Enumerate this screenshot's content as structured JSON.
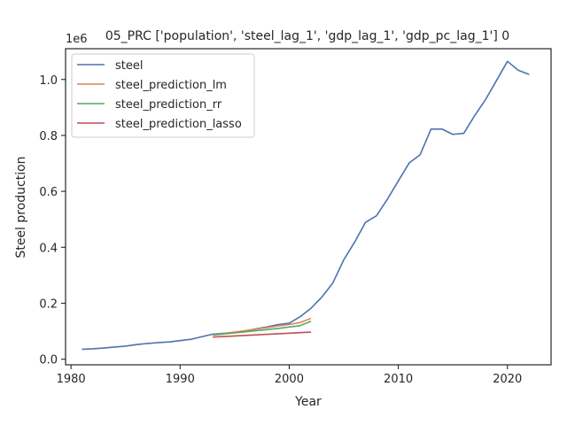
{
  "chart_data": {
    "type": "line",
    "title": "05_PRC ['population', 'steel_lag_1', 'gdp_lag_1', 'gdp_pc_lag_1'] 0",
    "xlabel": "Year",
    "ylabel": "Steel production",
    "y_offset_label": "1e6",
    "xlim": [
      1979.5,
      2024.0
    ],
    "ylim": [
      -0.02,
      1.11
    ],
    "xticks": [
      1980,
      1990,
      2000,
      2010,
      2020
    ],
    "yticks": [
      0.0,
      0.2,
      0.4,
      0.6,
      0.8,
      1.0
    ],
    "ytick_labels": [
      "0.0",
      "0.2",
      "0.4",
      "0.6",
      "0.8",
      "1.0"
    ],
    "grid": false,
    "legend_position": "top-left",
    "series": [
      {
        "name": "steel",
        "color": "#4c72b0",
        "x": [
          1981,
          1982,
          1983,
          1984,
          1985,
          1986,
          1987,
          1988,
          1989,
          1990,
          1991,
          1992,
          1993,
          1994,
          1995,
          1996,
          1997,
          1998,
          1999,
          2000,
          2001,
          2002,
          2003,
          2004,
          2005,
          2006,
          2007,
          2008,
          2009,
          2010,
          2011,
          2012,
          2013,
          2014,
          2015,
          2016,
          2017,
          2018,
          2019,
          2020,
          2021,
          2022
        ],
        "y": [
          0.0356,
          0.0372,
          0.04,
          0.0435,
          0.0467,
          0.0521,
          0.0563,
          0.0594,
          0.0616,
          0.0664,
          0.0711,
          0.0805,
          0.0896,
          0.0926,
          0.0954,
          0.1012,
          0.1089,
          0.1156,
          0.124,
          0.1285,
          0.1518,
          0.1822,
          0.2224,
          0.2725,
          0.3553,
          0.4189,
          0.4895,
          0.5129,
          0.5721,
          0.6373,
          0.7016,
          0.7311,
          0.8227,
          0.8227,
          0.8038,
          0.8075,
          0.8707,
          0.9283,
          0.9963,
          1.0647,
          1.0328,
          1.0179
        ]
      },
      {
        "name": "steel_prediction_lm",
        "color": "#dd8452",
        "x": [
          1993,
          1994,
          1995,
          1996,
          1997,
          1998,
          1999,
          2000,
          2001,
          2002
        ],
        "y": [
          0.087,
          0.092,
          0.097,
          0.102,
          0.108,
          0.113,
          0.119,
          0.124,
          0.131,
          0.146
        ]
      },
      {
        "name": "steel_prediction_rr",
        "color": "#55a868",
        "x": [
          1993,
          1994,
          1995,
          1996,
          1997,
          1998,
          1999,
          2000,
          2001,
          2002
        ],
        "y": [
          0.086,
          0.09,
          0.094,
          0.098,
          0.102,
          0.106,
          0.11,
          0.115,
          0.12,
          0.136
        ]
      },
      {
        "name": "steel_prediction_lasso",
        "color": "#c44e52",
        "x": [
          1993,
          1994,
          1995,
          1996,
          1997,
          1998,
          1999,
          2000,
          2001,
          2002
        ],
        "y": [
          0.079,
          0.081,
          0.083,
          0.085,
          0.087,
          0.089,
          0.091,
          0.093,
          0.095,
          0.097
        ]
      }
    ]
  }
}
